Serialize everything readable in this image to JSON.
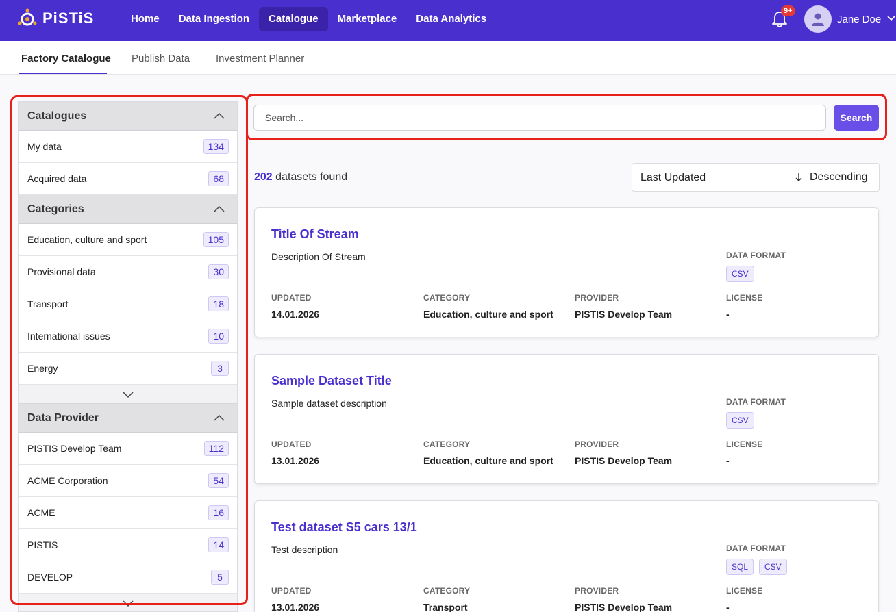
{
  "app": {
    "brand": "PiSTiS",
    "brand_color": "#4a2fcf",
    "nav": [
      "Home",
      "Data Ingestion",
      "Catalogue",
      "Marketplace",
      "Data Analytics"
    ],
    "active_nav": "Catalogue",
    "notification_badge": "9+",
    "user_name": "Jane Doe"
  },
  "subtabs": [
    "Factory Catalogue",
    "Publish Data",
    "Investment Planner"
  ],
  "active_subtab": "Factory Catalogue",
  "sidebar": {
    "sections": [
      {
        "title": "Catalogues",
        "items": [
          {
            "label": "My data",
            "count": "134"
          },
          {
            "label": "Acquired data",
            "count": "68"
          }
        ]
      },
      {
        "title": "Categories",
        "items": [
          {
            "label": "Education, culture and sport",
            "count": "105"
          },
          {
            "label": "Provisional data",
            "count": "30"
          },
          {
            "label": "Transport",
            "count": "18"
          },
          {
            "label": "International issues",
            "count": "10"
          },
          {
            "label": "Energy",
            "count": "3"
          }
        ]
      },
      {
        "title": "Data Provider",
        "items": [
          {
            "label": "PISTIS Develop Team",
            "count": "112"
          },
          {
            "label": "ACME Corporation",
            "count": "54"
          },
          {
            "label": "ACME",
            "count": "16"
          },
          {
            "label": "PISTIS",
            "count": "14"
          },
          {
            "label": "DEVELOP",
            "count": "5"
          }
        ]
      }
    ]
  },
  "search": {
    "placeholder": "Search...",
    "button_label": "Search"
  },
  "results": {
    "count": "202",
    "suffix": "datasets found",
    "sort_field": "Last Updated",
    "sort_direction": "Descending"
  },
  "meta_labels": {
    "data_format": "DATA FORMAT",
    "updated": "UPDATED",
    "category": "CATEGORY",
    "provider": "PROVIDER",
    "license": "LICENSE"
  },
  "datasets": [
    {
      "title": "Title Of Stream",
      "description": "Description Of Stream",
      "formats": [
        "CSV"
      ],
      "updated": "14.01.2026",
      "category": "Education, culture and sport",
      "provider": "PISTIS Develop Team",
      "license": "-"
    },
    {
      "title": "Sample Dataset Title",
      "description": "Sample dataset description",
      "formats": [
        "CSV"
      ],
      "updated": "13.01.2026",
      "category": "Education, culture and sport",
      "provider": "PISTIS Develop Team",
      "license": "-"
    },
    {
      "title": "Test dataset S5 cars 13/1",
      "description": "Test description",
      "formats": [
        "SQL",
        "CSV"
      ],
      "updated": "13.01.2026",
      "category": "Transport",
      "provider": "PISTIS Develop Team",
      "license": "-"
    }
  ]
}
